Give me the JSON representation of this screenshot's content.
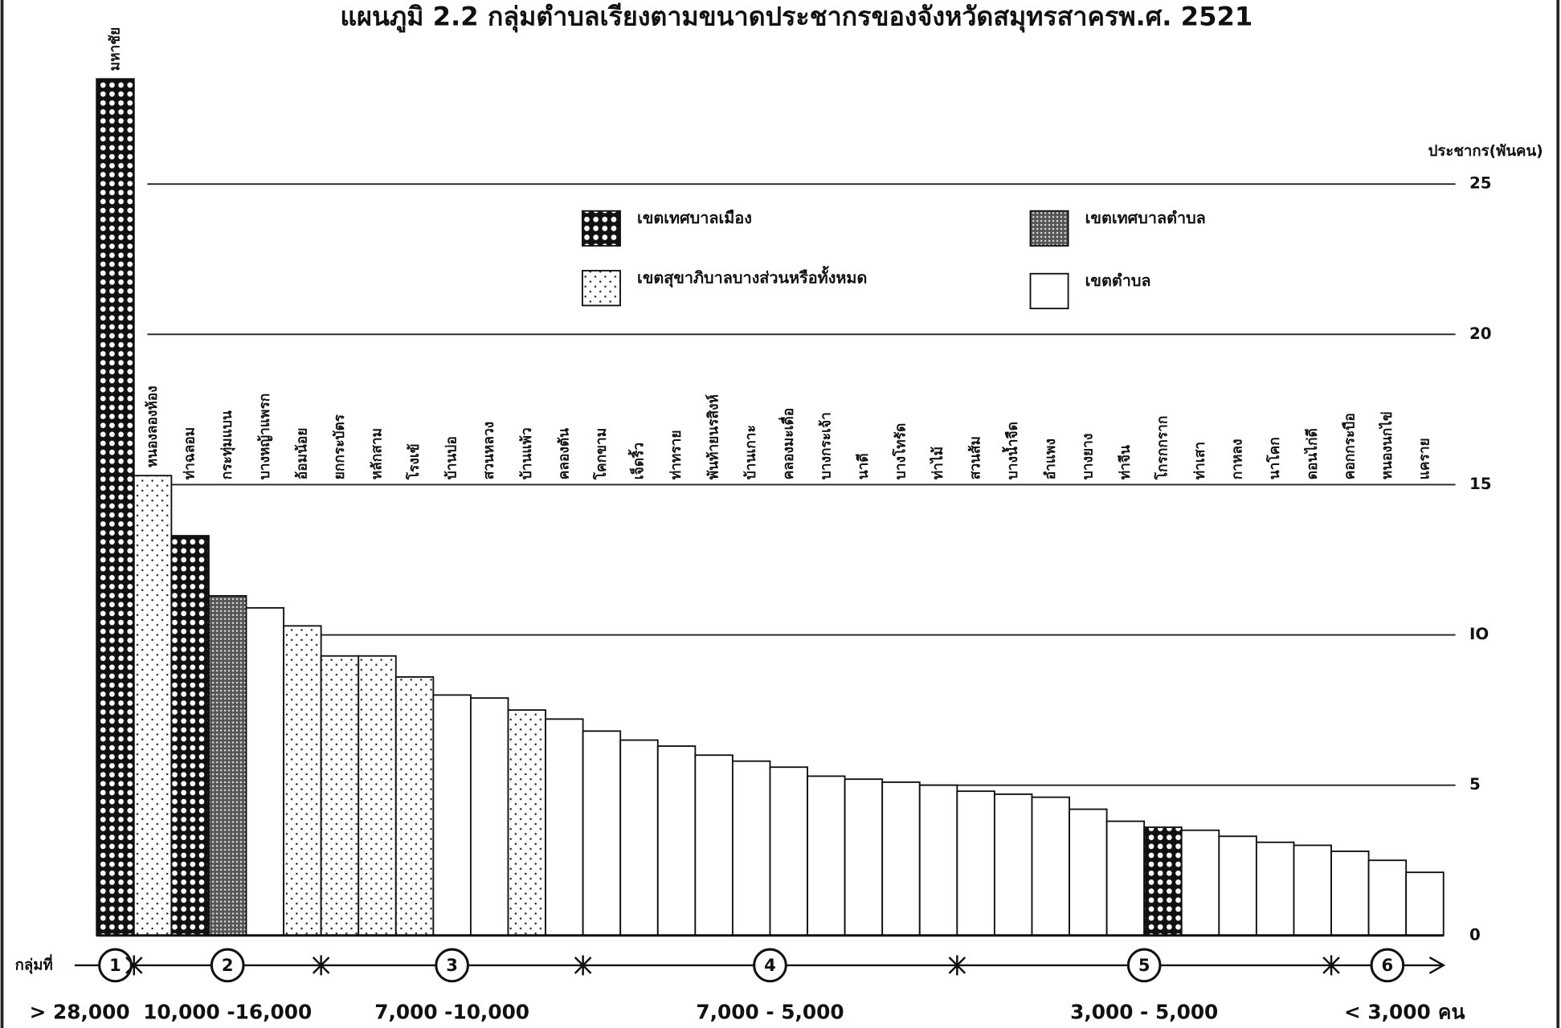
{
  "chart_data": {
    "type": "bar",
    "title": "แผนภูมิ 2.2 กลุ่มตำบลเรียงตามขนาดประชากรของจังหวัดสมุทรสาครพ.ศ. 2521",
    "y_label": "ประชากร(พันคน)",
    "categories": [
      "มหาชัย",
      "หนองลองห้อง",
      "ท่าฉลอม",
      "กระทุ่มแบน",
      "บางหญ้าแพรก",
      "อ้อมน้อย",
      "ยกกระบัตร",
      "หลักสาม",
      "โรงเข้",
      "บ้านบ่อ",
      "สวนหลวง",
      "บ้านแพ้ว",
      "คลองตัน",
      "โคกขาม",
      "เจ็ดริ้ว",
      "ท่าทราย",
      "พันท้ายนรสิงห์",
      "บ้านเกาะ",
      "คลองมะเดื่อ",
      "บางกระเจ้า",
      "นาดี",
      "บางโทรัด",
      "ท่าไม้",
      "สวนส้ม",
      "บางน้ำจืด",
      "อำแพง",
      "บางยาง",
      "ท่าจีน",
      "โกรกกราก",
      "ท่าเสา",
      "กาหลง",
      "นาโคก",
      "ดอนไก่ดี",
      "คอกกระบือ",
      "หนองนกไข่",
      "แคราย"
    ],
    "series": [
      {
        "name": "เขตเทศบาลเมือง",
        "pattern": "dots-large",
        "values": [
          28.5,
          null,
          13.3,
          null,
          null,
          null,
          null,
          null,
          null,
          null,
          null,
          null,
          null,
          null,
          null,
          null,
          null,
          null,
          null,
          null,
          null,
          null,
          null,
          null,
          null,
          null,
          null,
          null,
          3.6,
          null,
          null,
          null,
          null,
          null,
          null,
          null
        ]
      },
      {
        "name": "เขตเทศบาลตำบล",
        "pattern": "crosshatch",
        "values": [
          null,
          null,
          null,
          11.3,
          null,
          null,
          null,
          null,
          null,
          null,
          null,
          null,
          null,
          null,
          null,
          null,
          null,
          null,
          null,
          null,
          null,
          null,
          null,
          null,
          null,
          null,
          null,
          null,
          null,
          null,
          null,
          null,
          null,
          null,
          null,
          null
        ]
      },
      {
        "name": "เขตสุขาภิบาลบางส่วนหรือทั้งหมด",
        "pattern": "dots-small",
        "values": [
          null,
          15.3,
          null,
          null,
          null,
          10.3,
          9.3,
          9.3,
          8.6,
          null,
          null,
          7.5,
          null,
          null,
          null,
          null,
          null,
          null,
          null,
          null,
          null,
          null,
          null,
          null,
          null,
          null,
          null,
          null,
          null,
          null,
          null,
          null,
          null,
          null,
          null,
          null
        ]
      },
      {
        "name": "เขตตำบล",
        "pattern": "plain",
        "values": [
          null,
          null,
          null,
          null,
          10.9,
          null,
          null,
          null,
          null,
          8.0,
          7.9,
          null,
          7.2,
          6.8,
          6.5,
          6.3,
          6.0,
          5.8,
          5.6,
          5.3,
          5.2,
          5.1,
          5.0,
          4.8,
          4.7,
          4.6,
          4.2,
          3.8,
          null,
          3.5,
          3.3,
          3.1,
          3.0,
          2.8,
          2.5,
          2.1
        ]
      }
    ],
    "ylim": [
      0,
      29
    ],
    "yticks": [
      0,
      5,
      {
        "value": 10,
        "label": "IO"
      },
      15,
      20,
      25
    ],
    "grid": true,
    "group_title": "กลุ่มที่",
    "groups": [
      {
        "label": "1",
        "range": "> 28,000",
        "size": 1
      },
      {
        "label": "2",
        "range": "10,000 -16,000",
        "size": 5
      },
      {
        "label": "3",
        "range": "7,000 -10,000",
        "size": 7
      },
      {
        "label": "4",
        "range": "7,000 - 5,000",
        "size": 10
      },
      {
        "label": "5",
        "range": "3,000 - 5,000",
        "size": 10
      },
      {
        "label": "6",
        "range": "< 3,000",
        "size": 3
      }
    ],
    "unit": "คน"
  }
}
